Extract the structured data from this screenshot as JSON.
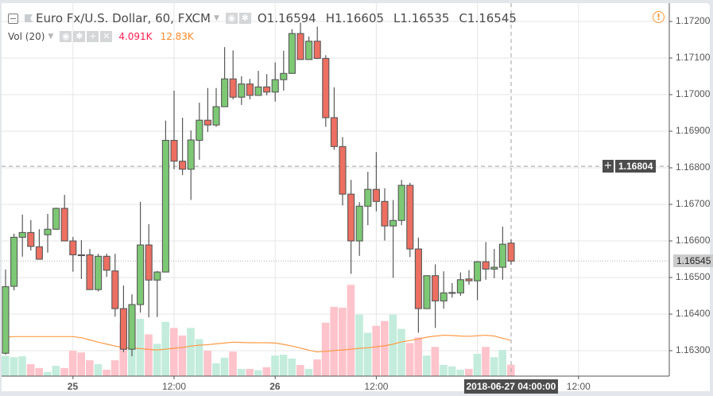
{
  "header": {
    "title": "Euro Fx/U.S. Dollar, 60, FXCM",
    "ohlc": {
      "o": "O1.16594",
      "h": "H1.16605",
      "l": "L1.16535",
      "c": "C1.16545"
    },
    "volume_indicator": {
      "name": "Vol (20)",
      "value": "4.091K",
      "ma_value": "12.83K",
      "value_color": "#ff1f4f",
      "ma_color": "#ff8a2b"
    },
    "warning_icon": "exclamation-circle-icon"
  },
  "crosshair": {
    "price_label": "1.16804",
    "time_label": "2018-06-27 04:00:00",
    "plus_label": "+"
  },
  "last_price_label": "1.16545",
  "colors": {
    "up": "#7dc874",
    "down": "#ec6f61",
    "wick": "#585858",
    "vol_up": "#c3ecdc",
    "vol_down": "#ffc3cb",
    "ma": "#ff9a45"
  },
  "chart_data": {
    "type": "candlestick",
    "ylim": [
      1.1624,
      1.1726
    ],
    "price_ticks": [
      "1.17200",
      "1.17100",
      "1.17000",
      "1.16900",
      "1.16800",
      "1.16700",
      "1.16600",
      "1.16500",
      "1.16400",
      "1.16300"
    ],
    "time_ticks": [
      {
        "label": "25",
        "bar": 8,
        "bold": true
      },
      {
        "label": "12:00",
        "bar": 20,
        "bold": false
      },
      {
        "label": "26",
        "bar": 32,
        "bold": true
      },
      {
        "label": "12:00",
        "bar": 44,
        "bold": false
      },
      {
        "label": "12:00",
        "bar": 68,
        "bold": false
      }
    ],
    "ohlc": [
      [
        1.16293,
        1.16522,
        1.16289,
        1.16475
      ],
      [
        1.16476,
        1.1662,
        1.16465,
        1.1661
      ],
      [
        1.1661,
        1.16672,
        1.16557,
        1.16623
      ],
      [
        1.16623,
        1.16657,
        1.16574,
        1.16585
      ],
      [
        1.16584,
        1.16632,
        1.1655,
        1.1655
      ],
      [
        1.16617,
        1.16674,
        1.16568,
        1.16632
      ],
      [
        1.16632,
        1.16691,
        1.1663,
        1.16689
      ],
      [
        1.16689,
        1.16726,
        1.166,
        1.166
      ],
      [
        1.166,
        1.16611,
        1.16516,
        1.16562
      ],
      [
        1.16562,
        1.16602,
        1.16496,
        1.16561
      ],
      [
        1.16562,
        1.16578,
        1.16467,
        1.16467
      ],
      [
        1.16467,
        1.16565,
        1.16462,
        1.16558
      ],
      [
        1.16558,
        1.16565,
        1.16502,
        1.1652
      ],
      [
        1.16518,
        1.16565,
        1.16393,
        1.16415
      ],
      [
        1.16415,
        1.16478,
        1.16296,
        1.16304
      ],
      [
        1.16304,
        1.16454,
        1.16285,
        1.16426
      ],
      [
        1.16426,
        1.16707,
        1.16404,
        1.16589
      ],
      [
        1.16589,
        1.16646,
        1.16391,
        1.16493
      ],
      [
        1.16493,
        1.16518,
        1.16392,
        1.16515
      ],
      [
        1.16515,
        1.16929,
        1.16515,
        1.16875
      ],
      [
        1.16875,
        1.17011,
        1.16796,
        1.16818
      ],
      [
        1.16818,
        1.16937,
        1.1678,
        1.16796
      ],
      [
        1.16796,
        1.16902,
        1.16712,
        1.16876
      ],
      [
        1.16875,
        1.16978,
        1.16822,
        1.1693
      ],
      [
        1.1693,
        1.17018,
        1.16898,
        1.16917
      ],
      [
        1.16917,
        1.17018,
        1.16912,
        1.16967
      ],
      [
        1.16967,
        1.1713,
        1.16967,
        1.17043
      ],
      [
        1.17043,
        1.17121,
        1.16987,
        1.16993
      ],
      [
        1.16993,
        1.1705,
        1.16972,
        1.17029
      ],
      [
        1.17029,
        1.17043,
        1.16987,
        1.16998
      ],
      [
        1.16998,
        1.17065,
        1.16998,
        1.17021
      ],
      [
        1.17021,
        1.17056,
        1.16998,
        1.17007
      ],
      [
        1.17007,
        1.17088,
        1.16981,
        1.17041
      ],
      [
        1.17041,
        1.1712,
        1.17011,
        1.17058
      ],
      [
        1.17058,
        1.17179,
        1.17058,
        1.17167
      ],
      [
        1.17167,
        1.17197,
        1.17096,
        1.17096
      ],
      [
        1.17096,
        1.17159,
        1.17096,
        1.17146
      ],
      [
        1.17146,
        1.17186,
        1.17097,
        1.17099
      ],
      [
        1.17099,
        1.17108,
        1.16912,
        1.16937
      ],
      [
        1.16937,
        1.1702,
        1.16849,
        1.16858
      ],
      [
        1.16858,
        1.16884,
        1.16697,
        1.16728
      ],
      [
        1.16728,
        1.16767,
        1.1651,
        1.166
      ],
      [
        1.166,
        1.16706,
        1.16559,
        1.16695
      ],
      [
        1.16695,
        1.16789,
        1.16643,
        1.16741
      ],
      [
        1.16741,
        1.16843,
        1.16681,
        1.16708
      ],
      [
        1.16708,
        1.16744,
        1.16601,
        1.16641
      ],
      [
        1.16641,
        1.16712,
        1.16499,
        1.16656
      ],
      [
        1.16656,
        1.16767,
        1.16643,
        1.16752
      ],
      [
        1.16752,
        1.16759,
        1.16556,
        1.16578
      ],
      [
        1.16578,
        1.16609,
        1.16349,
        1.16415
      ],
      [
        1.16415,
        1.16505,
        1.16415,
        1.16505
      ],
      [
        1.16505,
        1.16536,
        1.16362,
        1.16436
      ],
      [
        1.16436,
        1.16517,
        1.16415,
        1.16458
      ],
      [
        1.16458,
        1.16485,
        1.16445,
        1.16459
      ],
      [
        1.16458,
        1.16514,
        1.1645,
        1.16494
      ],
      [
        1.16496,
        1.1652,
        1.1648,
        1.16491
      ],
      [
        1.16491,
        1.16545,
        1.16438,
        1.16543
      ],
      [
        1.16543,
        1.16597,
        1.16494,
        1.16523
      ],
      [
        1.16523,
        1.16578,
        1.16498,
        1.16528
      ],
      [
        1.16528,
        1.16639,
        1.16494,
        1.16591
      ],
      [
        1.16594,
        1.16605,
        1.16535,
        1.16545
      ]
    ],
    "volume_k": [
      7.3,
      6.8,
      7.1,
      4.3,
      2.9,
      1.5,
      3.7,
      2.9,
      9.1,
      8.5,
      5.7,
      4.3,
      2.3,
      5.7,
      19.0,
      24.2,
      20.6,
      15.0,
      11.6,
      19.5,
      17.3,
      14.6,
      17.3,
      13.3,
      9.1,
      4.6,
      6.6,
      8.8,
      2.6,
      2.6,
      2.1,
      3.2,
      7.4,
      7.7,
      6.3,
      4.0,
      2.6,
      6.0,
      19.2,
      24.9,
      24.6,
      32.8,
      22.1,
      15.6,
      18.1,
      19.8,
      22.1,
      17.0,
      11.9,
      13.9,
      7.4,
      10.5,
      4.0,
      3.5,
      2.3,
      2.6,
      8.0,
      10.5,
      6.8,
      9.4,
      4.091
    ],
    "volume_ma_k": [
      14.0,
      14.2,
      14.2,
      14.2,
      14.2,
      14.2,
      14.2,
      14.2,
      14.2,
      13.8,
      13.0,
      12.2,
      11.5,
      10.8,
      10.3,
      10.0,
      9.9,
      9.6,
      9.4,
      9.7,
      10.0,
      10.3,
      10.8,
      11.1,
      11.3,
      11.6,
      11.9,
      12.2,
      12.1,
      12.0,
      12.0,
      12.0,
      11.9,
      11.4,
      10.8,
      10.1,
      9.3,
      8.7,
      8.9,
      9.2,
      9.4,
      9.7,
      10.0,
      10.2,
      10.5,
      10.9,
      11.5,
      12.3,
      12.8,
      13.3,
      14.0,
      14.4,
      14.7,
      14.6,
      14.4,
      14.3,
      14.5,
      14.7,
      14.4,
      13.6,
      12.83
    ]
  }
}
